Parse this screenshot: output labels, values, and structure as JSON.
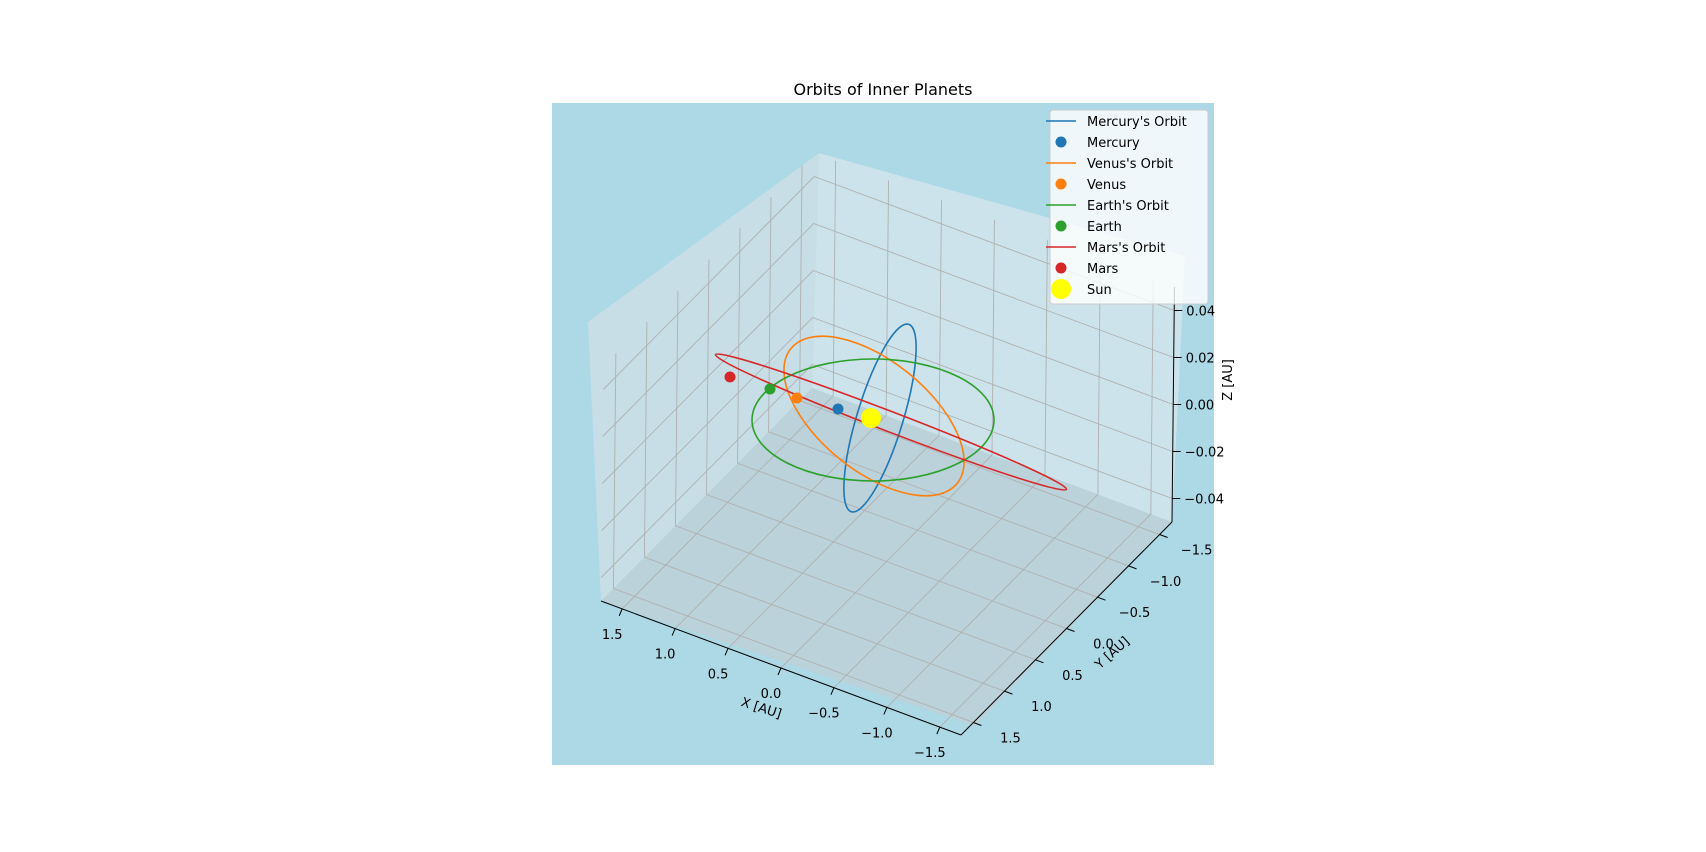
{
  "chart_data": {
    "type": "line",
    "projection": "3d",
    "title": "Orbits of Inner Planets",
    "xlabel": "X [AU]",
    "ylabel": "Y [AU]",
    "zlabel": "Z [AU]",
    "xlim": [
      -1.7,
      1.7
    ],
    "ylim": [
      -1.7,
      1.7
    ],
    "zlim": [
      -0.05,
      0.05
    ],
    "x_ticks": [
      "1.5",
      "1.0",
      "0.5",
      "0.0",
      "−0.5",
      "−1.0",
      "−1.5"
    ],
    "y_ticks": [
      "−1.5",
      "−1.0",
      "−0.5",
      "0.0",
      "0.5",
      "1.0",
      "1.5"
    ],
    "z_ticks": [
      "0.04",
      "0.02",
      "0.00",
      "−0.02",
      "−0.04"
    ],
    "grid": true,
    "background_color": "#add8e6",
    "legend_position": "upper right",
    "legend": [
      {
        "label": "Mercury's Orbit",
        "kind": "line",
        "color": "#1f77b4"
      },
      {
        "label": "Mercury",
        "kind": "marker",
        "color": "#1f77b4"
      },
      {
        "label": "Venus's Orbit",
        "kind": "line",
        "color": "#ff7f0e"
      },
      {
        "label": "Venus",
        "kind": "marker",
        "color": "#ff7f0e"
      },
      {
        "label": "Earth's Orbit",
        "kind": "line",
        "color": "#2ca02c"
      },
      {
        "label": "Earth",
        "kind": "marker",
        "color": "#2ca02c"
      },
      {
        "label": "Mars's Orbit",
        "kind": "line",
        "color": "#d62728"
      },
      {
        "label": "Mars",
        "kind": "marker",
        "color": "#d62728"
      },
      {
        "label": "Sun",
        "kind": "marker-large",
        "color": "#ffff00"
      }
    ],
    "orbits": [
      {
        "name": "Mercury's Orbit",
        "color": "#1f77b4",
        "semi_major_axis": 0.387,
        "inclination_deg": 7.0
      },
      {
        "name": "Venus's Orbit",
        "color": "#ff7f0e",
        "semi_major_axis": 0.723,
        "inclination_deg": 3.39
      },
      {
        "name": "Earth's Orbit",
        "color": "#2ca02c",
        "semi_major_axis": 1.0,
        "inclination_deg": 0.0
      },
      {
        "name": "Mars's Orbit",
        "color": "#d62728",
        "semi_major_axis": 1.524,
        "inclination_deg": 1.85
      }
    ],
    "points": [
      {
        "name": "Mercury",
        "color": "#1f77b4",
        "x": 0.387,
        "y": 0.0,
        "z": 0.0
      },
      {
        "name": "Venus",
        "color": "#ff7f0e",
        "x": 0.723,
        "y": 0.0,
        "z": 0.0
      },
      {
        "name": "Earth",
        "color": "#2ca02c",
        "x": 1.0,
        "y": 0.0,
        "z": 0.0
      },
      {
        "name": "Mars",
        "color": "#d62728",
        "x": 1.524,
        "y": 0.0,
        "z": 0.0
      },
      {
        "name": "Sun",
        "color": "#ffff00",
        "x": 0.0,
        "y": 0.0,
        "z": 0.0
      }
    ]
  }
}
